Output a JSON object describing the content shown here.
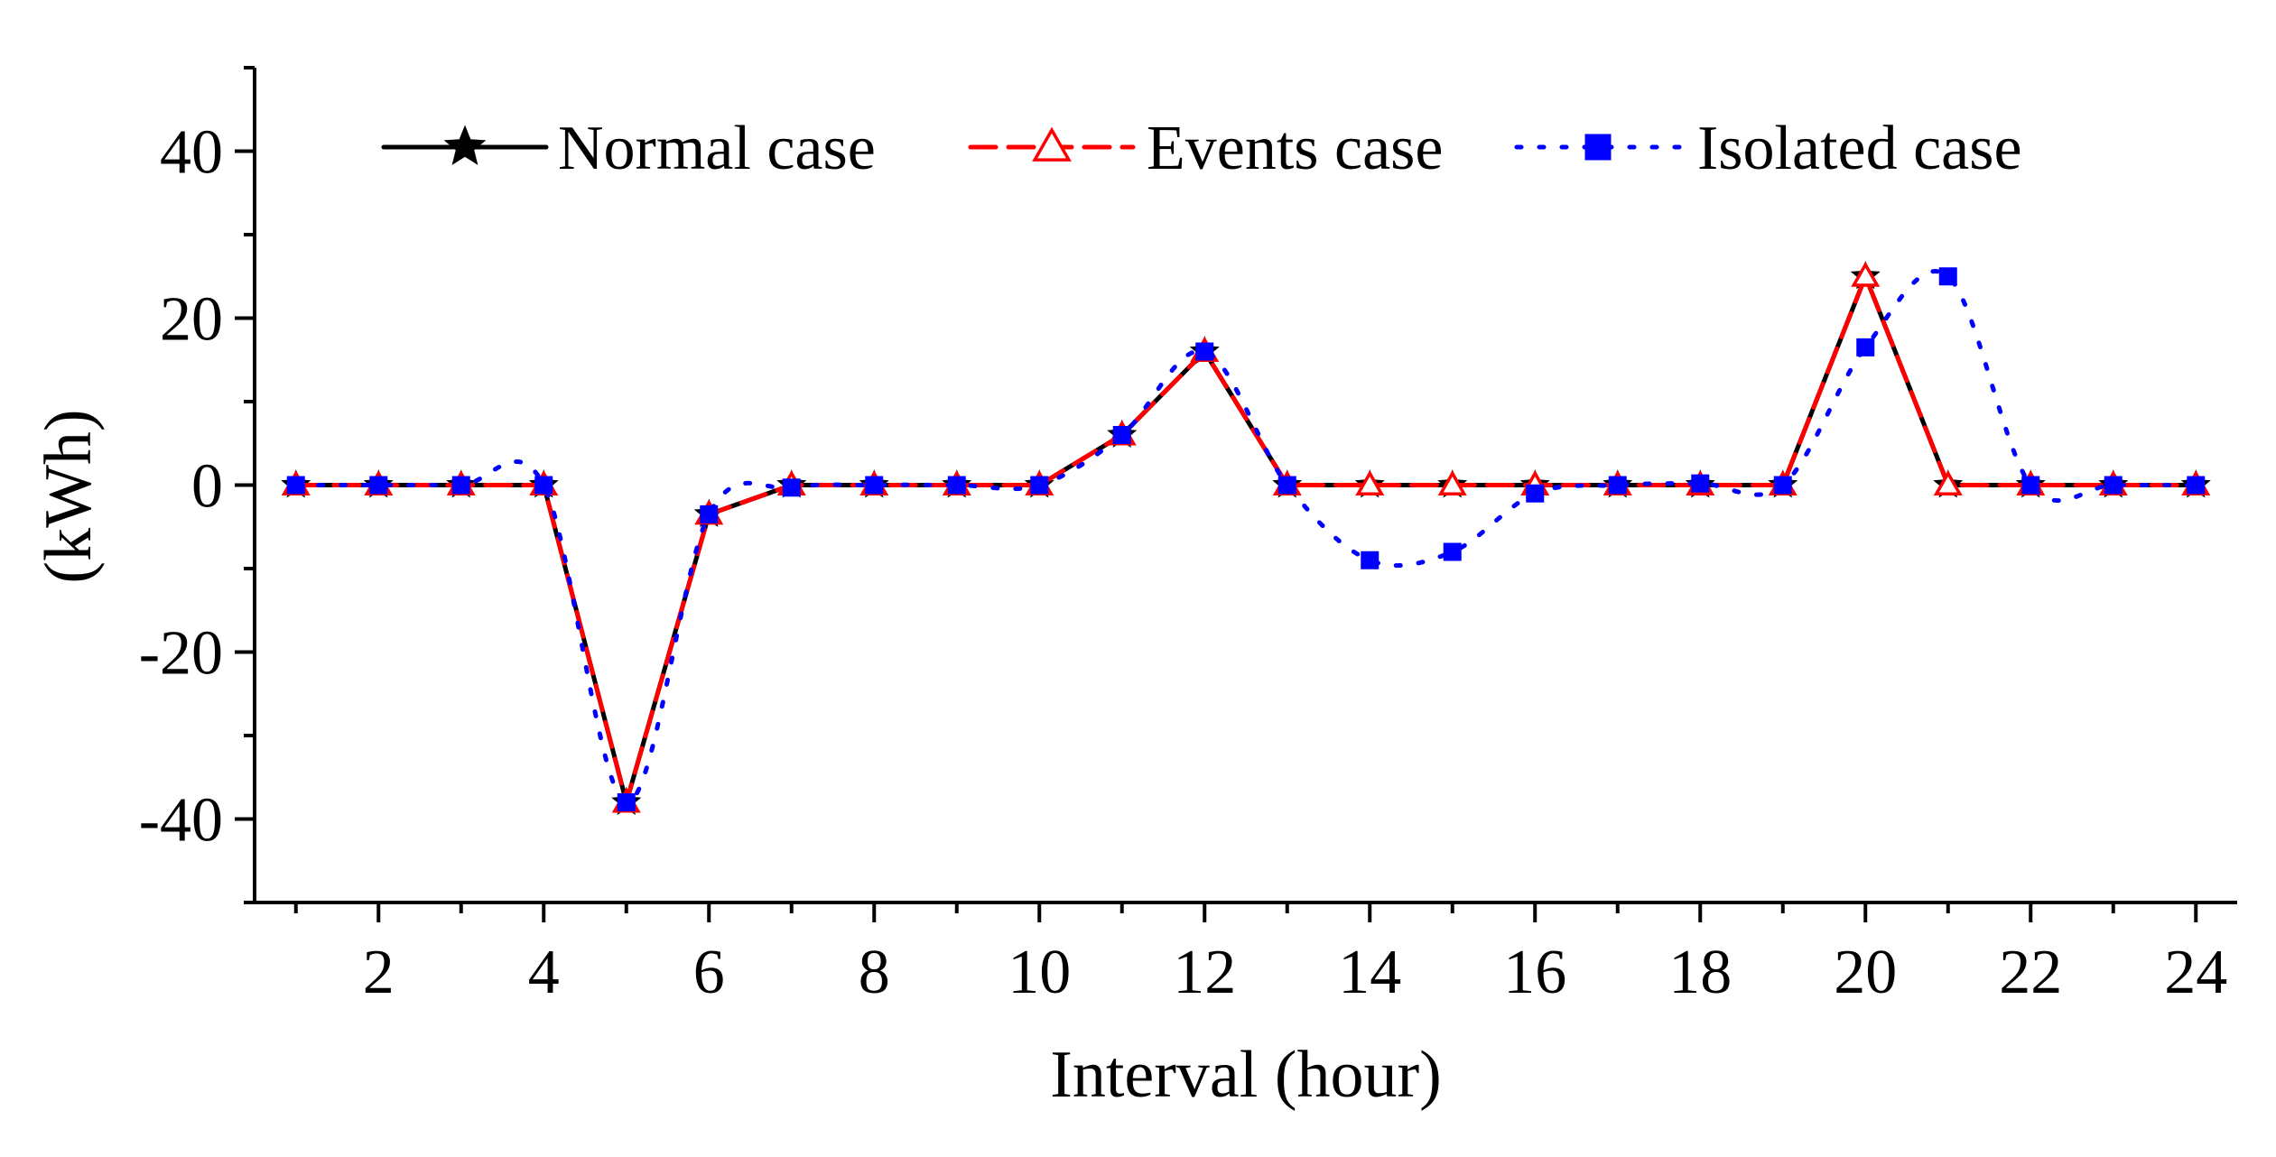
{
  "chart_data": {
    "type": "line",
    "title": "",
    "xlabel": "Interval (hour)",
    "ylabel": "(kWh)",
    "xlim": [
      0.5,
      24.5
    ],
    "ylim": [
      -50,
      50
    ],
    "x_ticks": [
      2,
      4,
      6,
      8,
      10,
      12,
      14,
      16,
      18,
      20,
      22,
      24
    ],
    "y_ticks": [
      -40,
      -20,
      0,
      20,
      40
    ],
    "grid": false,
    "legend_position": "top",
    "x": [
      1,
      2,
      3,
      4,
      5,
      6,
      7,
      8,
      9,
      10,
      11,
      12,
      13,
      14,
      15,
      16,
      17,
      18,
      19,
      20,
      21,
      22,
      23,
      24
    ],
    "series": [
      {
        "name": "Normal case",
        "color": "#000000",
        "line_style": "solid",
        "marker": "star",
        "values": [
          0,
          0,
          0,
          0,
          -38,
          -3.5,
          0,
          0,
          0,
          0,
          6,
          16,
          0,
          0,
          0,
          0,
          0,
          0,
          0,
          25,
          0,
          0,
          0,
          0
        ]
      },
      {
        "name": "Events case",
        "color": "#ff0000",
        "line_style": "dashed",
        "marker": "open-triangle",
        "values": [
          0,
          0,
          0,
          0,
          -38,
          -3.5,
          0,
          0,
          0,
          0,
          6,
          16,
          0,
          0,
          0,
          0,
          0,
          0,
          0,
          25,
          0,
          0,
          0,
          0
        ]
      },
      {
        "name": "Isolated case",
        "color": "#0000ff",
        "line_style": "dotted",
        "marker": "filled-square",
        "values": [
          0,
          0,
          0,
          0,
          -38,
          -3.5,
          -0.3,
          0,
          0,
          0,
          6,
          16,
          0,
          -9,
          -8,
          -1,
          0,
          0.2,
          0,
          16.5,
          25,
          0,
          0,
          0
        ]
      }
    ]
  }
}
